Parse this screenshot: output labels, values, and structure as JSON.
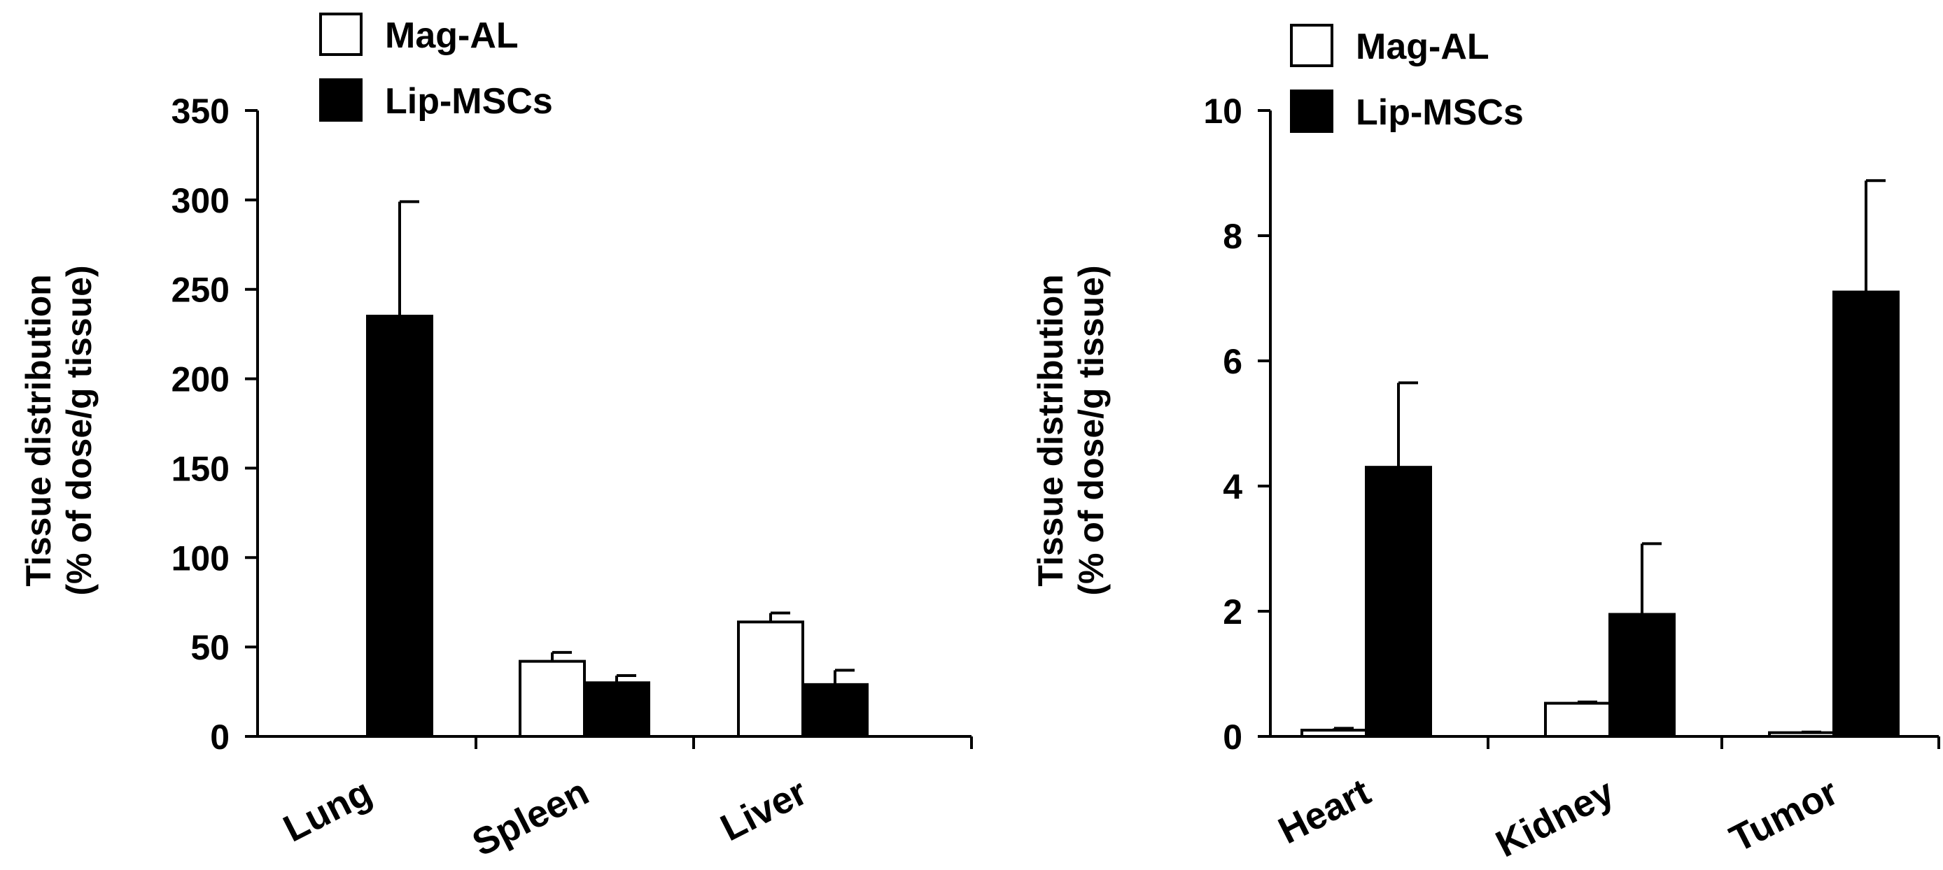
{
  "chart_data": [
    {
      "type": "bar",
      "ylabel": [
        "Tissue distribution",
        "(% of dose/g tissue)"
      ],
      "categories": [
        "Lung",
        "Spleen",
        "Liver"
      ],
      "ylim": [
        0,
        350
      ],
      "yticks": [
        0,
        50,
        100,
        150,
        200,
        250,
        300,
        350
      ],
      "legend_position": "top-left",
      "series": [
        {
          "name": "Mag-AL",
          "color": "#ffffff",
          "values": [
            0,
            42,
            64
          ],
          "errors": [
            0,
            5,
            5
          ]
        },
        {
          "name": "Lip-MSCs",
          "color": "#000000",
          "values": [
            235,
            30,
            29
          ],
          "errors": [
            64,
            4,
            8
          ]
        }
      ]
    },
    {
      "type": "bar",
      "ylabel": [
        "Tissue distribution",
        "(% of dose/g tissue)"
      ],
      "categories": [
        "Heart",
        "Kidney",
        "Tumor"
      ],
      "ylim": [
        0,
        10
      ],
      "yticks": [
        0,
        2,
        4,
        6,
        8,
        10
      ],
      "legend_position": "top-left",
      "series": [
        {
          "name": "Mag-AL",
          "color": "#ffffff",
          "values": [
            0.1,
            0.53,
            0.06
          ],
          "errors": [
            0.03,
            0.02,
            0.01
          ]
        },
        {
          "name": "Lip-MSCs",
          "color": "#000000",
          "values": [
            4.3,
            1.95,
            7.1
          ],
          "errors": [
            1.35,
            1.13,
            1.78
          ]
        }
      ]
    }
  ]
}
